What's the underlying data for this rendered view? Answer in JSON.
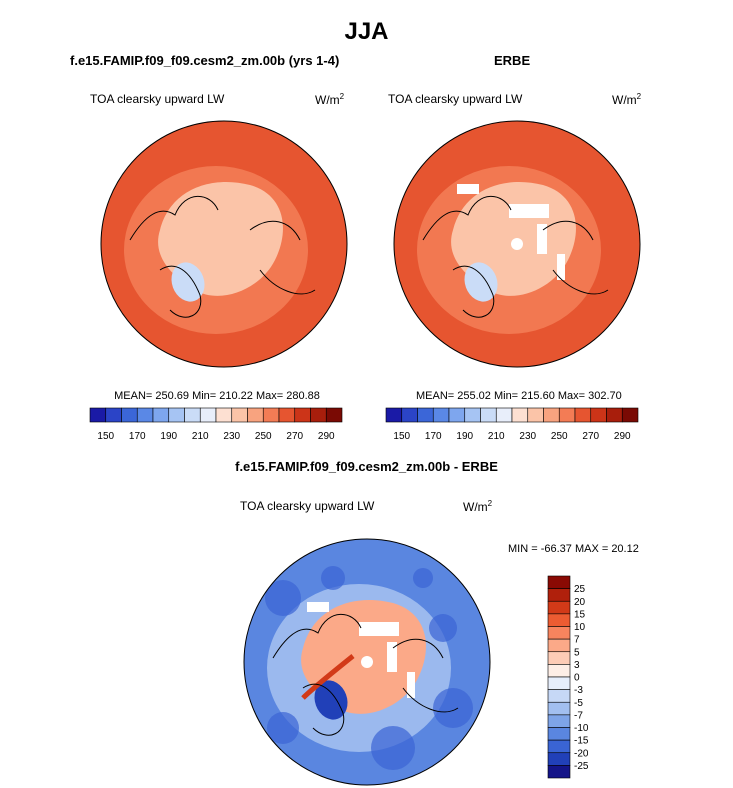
{
  "figure": {
    "title": "JJA"
  },
  "chart_data": [
    {
      "type": "heatmap",
      "projection": "north-polar-stereographic",
      "title": "f.e15.FAMIP.f09_f09.cesm2_zm.00b (yrs 1-4)",
      "variable": "TOA clearsky upward LW",
      "units": "W/m",
      "units_exp": "2",
      "stats": "MEAN= 250.69  Min= 210.22  Max= 280.88",
      "mean": 250.69,
      "min": 210.22,
      "max": 280.88,
      "colorbar": {
        "levels": [
          150,
          160,
          170,
          180,
          190,
          200,
          210,
          220,
          230,
          240,
          250,
          260,
          270,
          280,
          290
        ],
        "tick_labels": [
          "150",
          "170",
          "190",
          "210",
          "230",
          "250",
          "270",
          "290"
        ],
        "colors": [
          "#1a1aa6",
          "#2b44c7",
          "#3b66d8",
          "#5a88e6",
          "#7ea6ee",
          "#a6c4f3",
          "#cadcf7",
          "#e8eefa",
          "#fde0d2",
          "#fbc4a8",
          "#f8a37f",
          "#f37c55",
          "#e65530",
          "#cc3418",
          "#a81e0c",
          "#7a0a04"
        ]
      },
      "field": {
        "outer": "#e65530",
        "ring": "#f37c55",
        "inner": "#fbc4a8",
        "coldest": "#cadcf7"
      }
    },
    {
      "type": "heatmap",
      "projection": "north-polar-stereographic",
      "title": "ERBE",
      "variable": "TOA clearsky upward LW",
      "units": "W/m",
      "units_exp": "2",
      "stats": "MEAN= 255.02  Min= 215.60  Max= 302.70",
      "mean": 255.02,
      "min": 215.6,
      "max": 302.7,
      "colorbar": {
        "levels": [
          150,
          160,
          170,
          180,
          190,
          200,
          210,
          220,
          230,
          240,
          250,
          260,
          270,
          280,
          290
        ],
        "tick_labels": [
          "150",
          "170",
          "190",
          "210",
          "230",
          "250",
          "270",
          "290"
        ],
        "colors": [
          "#1a1aa6",
          "#2b44c7",
          "#3b66d8",
          "#5a88e6",
          "#7ea6ee",
          "#a6c4f3",
          "#cadcf7",
          "#e8eefa",
          "#fde0d2",
          "#fbc4a8",
          "#f8a37f",
          "#f37c55",
          "#e65530",
          "#cc3418",
          "#a81e0c",
          "#7a0a04"
        ]
      },
      "field": {
        "outer": "#e65530",
        "ring": "#f37c55",
        "inner": "#fbc4a8",
        "coldest": "#cadcf7"
      }
    },
    {
      "type": "heatmap",
      "projection": "north-polar-stereographic",
      "title": "f.e15.FAMIP.f09_f09.cesm2_zm.00b - ERBE",
      "variable": "TOA clearsky upward LW",
      "units": "W/m",
      "units_exp": "2",
      "stats": "MIN = -66.37 MAX =  20.12",
      "min": -66.37,
      "max": 20.12,
      "colorbar": {
        "orientation": "vertical",
        "levels": [
          -25,
          -20,
          -15,
          -10,
          -7,
          -5,
          -3,
          0,
          3,
          5,
          7,
          10,
          15,
          20,
          25
        ],
        "tick_labels": [
          "25",
          "20",
          "15",
          "10",
          "7",
          "5",
          "3",
          "0",
          "-3",
          "-5",
          "-7",
          "-10",
          "-15",
          "-20",
          "-25"
        ],
        "colors": [
          "#8a0a04",
          "#b0200c",
          "#d23a18",
          "#ec5c32",
          "#f7845e",
          "#fba988",
          "#fdccb6",
          "#fdeee6",
          "#e6eefb",
          "#c6d8f6",
          "#a2bff0",
          "#7ea4e8",
          "#5a86e0",
          "#3a64d4",
          "#2140b8",
          "#141488"
        ]
      },
      "field": {
        "outer": "#5a86e0",
        "ring": "#a2bff0",
        "inner": "#fba988",
        "coldest": "#2140b8"
      }
    }
  ]
}
